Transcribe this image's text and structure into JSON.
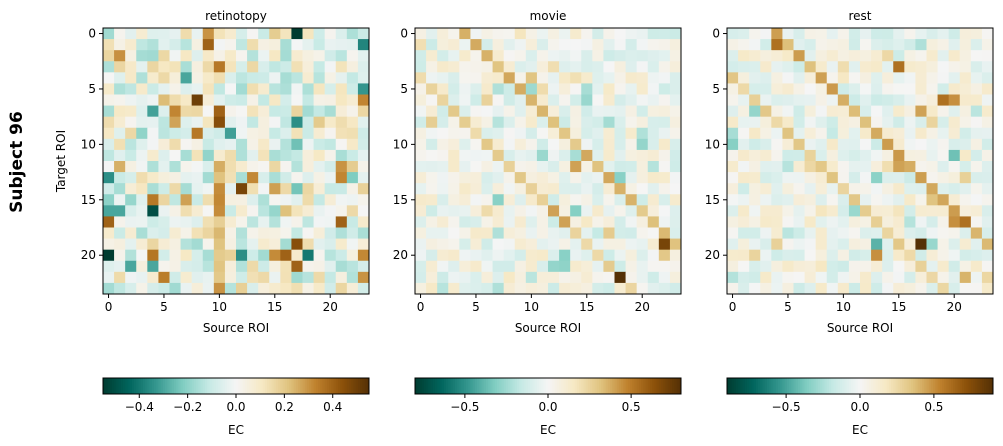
{
  "figure": {
    "row_label": "Subject 96",
    "cmap": [
      "#003c30",
      "#01665e",
      "#35978f",
      "#80cdc1",
      "#c7eae5",
      "#f5f5f5",
      "#f6e8c3",
      "#dfc27d",
      "#bf812d",
      "#8c510a",
      "#543005"
    ]
  },
  "chart_data": [
    {
      "type": "heatmap",
      "title": "retinotopy",
      "xlabel": "Source ROI",
      "ylabel": "Target ROI",
      "n": 24,
      "xticks": [
        0,
        5,
        10,
        15,
        20
      ],
      "yticks": [
        0,
        5,
        10,
        15,
        20
      ],
      "vlim": [
        -0.55,
        0.55
      ],
      "seed": 96,
      "spread": 0.17,
      "colorbar": {
        "label": "EC",
        "ticks": [
          -0.4,
          -0.2,
          0.0,
          0.2,
          0.4
        ],
        "tick_labels": [
          "−0.4",
          "−0.2",
          "0.0",
          "0.2",
          "0.4"
        ]
      },
      "highlights": [
        [
          0,
          17,
          -0.55
        ],
        [
          0,
          9,
          0.3
        ],
        [
          1,
          9,
          0.4
        ],
        [
          3,
          10,
          0.35
        ],
        [
          6,
          8,
          0.5
        ],
        [
          7,
          10,
          0.4
        ],
        [
          8,
          10,
          0.45
        ],
        [
          8,
          17,
          -0.35
        ],
        [
          9,
          8,
          0.35
        ],
        [
          12,
          1,
          0.25
        ],
        [
          12,
          21,
          0.3
        ],
        [
          14,
          12,
          0.48
        ],
        [
          15,
          0,
          -0.2
        ],
        [
          16,
          0,
          -0.3
        ],
        [
          16,
          1,
          -0.3
        ],
        [
          16,
          4,
          -0.5
        ],
        [
          17,
          0,
          0.4
        ],
        [
          17,
          21,
          0.4
        ],
        [
          19,
          17,
          0.45
        ],
        [
          20,
          0,
          -0.55
        ],
        [
          20,
          12,
          -0.35
        ],
        [
          20,
          16,
          0.4
        ],
        [
          20,
          18,
          -0.4
        ],
        [
          21,
          4,
          -0.3
        ],
        [
          21,
          2,
          -0.3
        ],
        [
          21,
          17,
          0.4
        ],
        [
          22,
          23,
          0.3
        ]
      ],
      "bands": [
        {
          "col": 10,
          "from": 12,
          "to": 23,
          "value": 0.3
        }
      ]
    },
    {
      "type": "heatmap",
      "title": "movie",
      "xlabel": "Source ROI",
      "ylabel": "",
      "n": 24,
      "xticks": [
        0,
        5,
        10,
        15,
        20
      ],
      "yticks": [
        0,
        5,
        10,
        15,
        20
      ],
      "vlim": [
        -0.8,
        0.8
      ],
      "seed": 1207,
      "spread": 0.14,
      "diagonal": [
        {
          "offset": 4,
          "value": 0.4
        },
        {
          "offset": -4,
          "value": 0.3
        }
      ],
      "colorbar": {
        "label": "EC",
        "ticks": [
          -0.5,
          0.0,
          0.5
        ],
        "tick_labels": [
          "−0.5",
          "0.0",
          "0.5"
        ]
      },
      "highlights": [
        [
          22,
          18,
          0.8
        ],
        [
          19,
          22,
          0.7
        ],
        [
          17,
          13,
          0.4
        ],
        [
          16,
          12,
          0.4
        ],
        [
          20,
          13,
          -0.3
        ],
        [
          15,
          7,
          -0.3
        ],
        [
          12,
          14,
          0.4
        ],
        [
          13,
          18,
          -0.3
        ]
      ]
    },
    {
      "type": "heatmap",
      "title": "rest",
      "xlabel": "Source ROI",
      "ylabel": "",
      "n": 24,
      "xticks": [
        0,
        5,
        10,
        15,
        20
      ],
      "yticks": [
        0,
        5,
        10,
        15,
        20
      ],
      "vlim": [
        -0.9,
        0.9
      ],
      "seed": 2311,
      "spread": 0.16,
      "diagonal": [
        {
          "offset": 4,
          "value": 0.5
        },
        {
          "offset": -4,
          "value": 0.35
        }
      ],
      "colorbar": {
        "label": "EC",
        "ticks": [
          -0.5,
          0.0,
          0.5
        ],
        "tick_labels": [
          "−0.5",
          "0.0",
          "0.5"
        ]
      },
      "highlights": [
        [
          1,
          4,
          0.6
        ],
        [
          3,
          15,
          0.6
        ],
        [
          6,
          19,
          0.6
        ],
        [
          6,
          20,
          0.5
        ],
        [
          7,
          17,
          0.45
        ],
        [
          11,
          20,
          -0.4
        ],
        [
          12,
          15,
          0.45
        ],
        [
          17,
          21,
          0.6
        ],
        [
          17,
          20,
          0.5
        ],
        [
          19,
          13,
          -0.45
        ],
        [
          19,
          17,
          0.9
        ],
        [
          19,
          18,
          -0.3
        ],
        [
          20,
          13,
          0.5
        ],
        [
          22,
          21,
          0.4
        ]
      ]
    }
  ]
}
